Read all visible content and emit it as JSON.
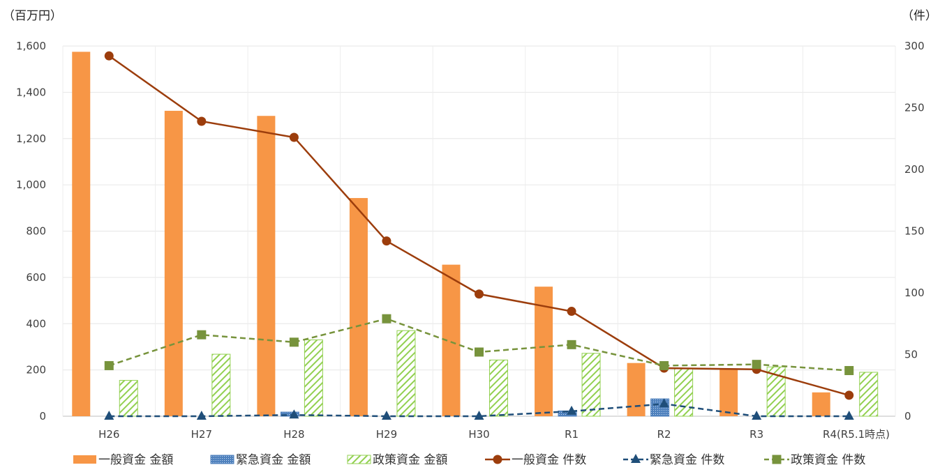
{
  "chart_data": {
    "type": "bar",
    "combo": true,
    "categories": [
      "H26",
      "H27",
      "H28",
      "H29",
      "H30",
      "R1",
      "R2",
      "R3",
      "R4(R5.1時点)"
    ],
    "y_left": {
      "unit": "（百万円）",
      "ylim": [
        0,
        1600
      ],
      "ticks": [
        "0",
        "200",
        "400",
        "600",
        "800",
        "1,000",
        "1,200",
        "1,400",
        "1,600"
      ]
    },
    "y_right": {
      "unit": "（件）",
      "ylim": [
        0,
        300
      ],
      "ticks": [
        "0",
        "50",
        "100",
        "150",
        "200",
        "250",
        "300"
      ]
    },
    "grid": true,
    "legend_position": "bottom",
    "bar_series": [
      {
        "name": "一般資金 金額",
        "axis": "left",
        "color": "#F79646",
        "pattern": "solid",
        "values": [
          1575,
          1320,
          1298,
          943,
          655,
          560,
          230,
          203,
          103
        ]
      },
      {
        "name": "緊急資金 金額",
        "axis": "left",
        "color": "#4F81BD",
        "pattern": "dots",
        "values": [
          0,
          0,
          18,
          0,
          0,
          23,
          75,
          0,
          0
        ]
      },
      {
        "name": "政策資金 金額",
        "axis": "left",
        "color": "#92D050",
        "pattern": "hatch",
        "values": [
          155,
          268,
          330,
          370,
          243,
          272,
          205,
          213,
          190
        ]
      }
    ],
    "line_series": [
      {
        "name": "一般資金 件数",
        "axis": "right",
        "color": "#9C3D0C",
        "marker": "circle",
        "dashed": false,
        "values": [
          292,
          239,
          226,
          142,
          99,
          85,
          39,
          38,
          17
        ]
      },
      {
        "name": "緊急資金 件数",
        "axis": "right",
        "color": "#1F4E79",
        "marker": "triangle",
        "dashed": true,
        "values": [
          0,
          0,
          1,
          0,
          0,
          4,
          10,
          0,
          0
        ]
      },
      {
        "name": "政策資金 件数",
        "axis": "right",
        "color": "#77933C",
        "marker": "square",
        "dashed": true,
        "values": [
          41,
          66,
          60,
          79,
          52,
          58,
          41,
          42,
          37
        ]
      }
    ]
  }
}
